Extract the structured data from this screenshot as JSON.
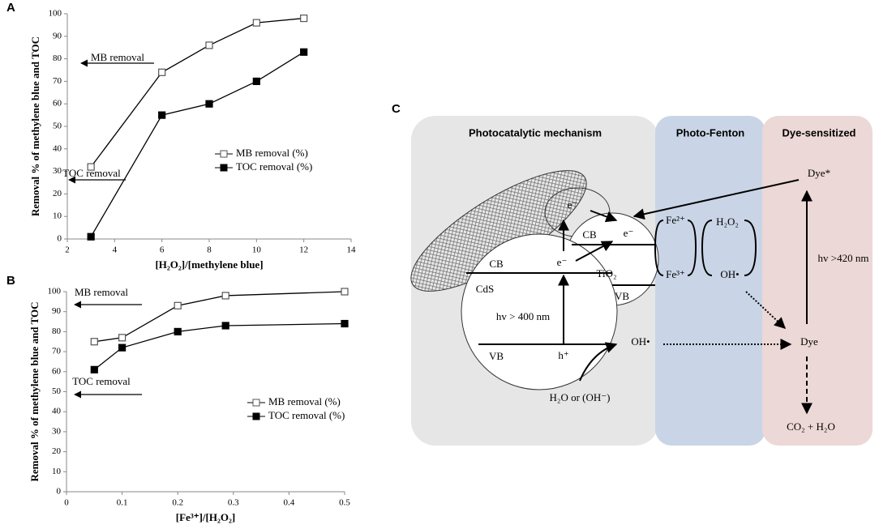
{
  "chart_data": [
    {
      "type": "line",
      "panel": "A",
      "x_label": "[H₂O₂]/[methylene blue]",
      "y_label": "Removal % of methylene blue and TOC",
      "x": [
        3,
        6,
        8,
        10,
        12
      ],
      "xlim": [
        2,
        14
      ],
      "xticks": [
        2,
        4,
        6,
        8,
        10,
        12,
        14
      ],
      "ylim": [
        0,
        100
      ],
      "yticks": [
        0,
        10,
        20,
        30,
        40,
        50,
        60,
        70,
        80,
        90,
        100
      ],
      "series": [
        {
          "name": "MB removal (%)",
          "color": "#555555",
          "marker": "open-square",
          "values": [
            32,
            74,
            86,
            96,
            98
          ]
        },
        {
          "name": "TOC removal (%)",
          "color": "#000000",
          "marker": "filled-square",
          "values": [
            1,
            55,
            60,
            70,
            83
          ]
        }
      ],
      "annotations": [
        "MB removal",
        "TOC removal"
      ]
    },
    {
      "type": "line",
      "panel": "B",
      "x_label": "[Fe³⁺]/[H₂O₂]",
      "y_label": "Removal % of methylene blue and TOC",
      "x": [
        0.05,
        0.1,
        0.2,
        0.286,
        0.5
      ],
      "xlim": [
        0,
        0.5
      ],
      "xticks": [
        0,
        0.1,
        0.2,
        0.3,
        0.4,
        0.5
      ],
      "ylim": [
        0,
        100
      ],
      "yticks": [
        0,
        10,
        20,
        30,
        40,
        50,
        60,
        70,
        80,
        90,
        100
      ],
      "series": [
        {
          "name": "MB removal (%)",
          "color": "#555555",
          "marker": "open-square",
          "values": [
            75,
            77,
            93,
            98,
            100
          ]
        },
        {
          "name": "TOC removal (%)",
          "color": "#000000",
          "marker": "filled-square",
          "values": [
            61,
            72,
            80,
            83,
            84
          ]
        }
      ],
      "annotations": [
        "MB removal",
        "TOC removal"
      ]
    }
  ],
  "diagram": {
    "panel": "C",
    "sections": [
      "Photocatalytic mechanism",
      "Photo-Fenton",
      "Dye-sensitized"
    ],
    "labels": [
      "CB",
      "e⁻",
      "CdS",
      "hv > 400 nm",
      "VB",
      "h⁺",
      "CB",
      "e⁻",
      "e⁻",
      "TiO₂",
      "VB",
      "Fe²⁺",
      "Fe³⁺",
      "H₂O₂",
      "OH•",
      "Dye*",
      "hv >420 nm",
      "Dye",
      "OH•",
      "H₂O or (OH⁻)",
      "CO₂ + H₂O"
    ]
  }
}
